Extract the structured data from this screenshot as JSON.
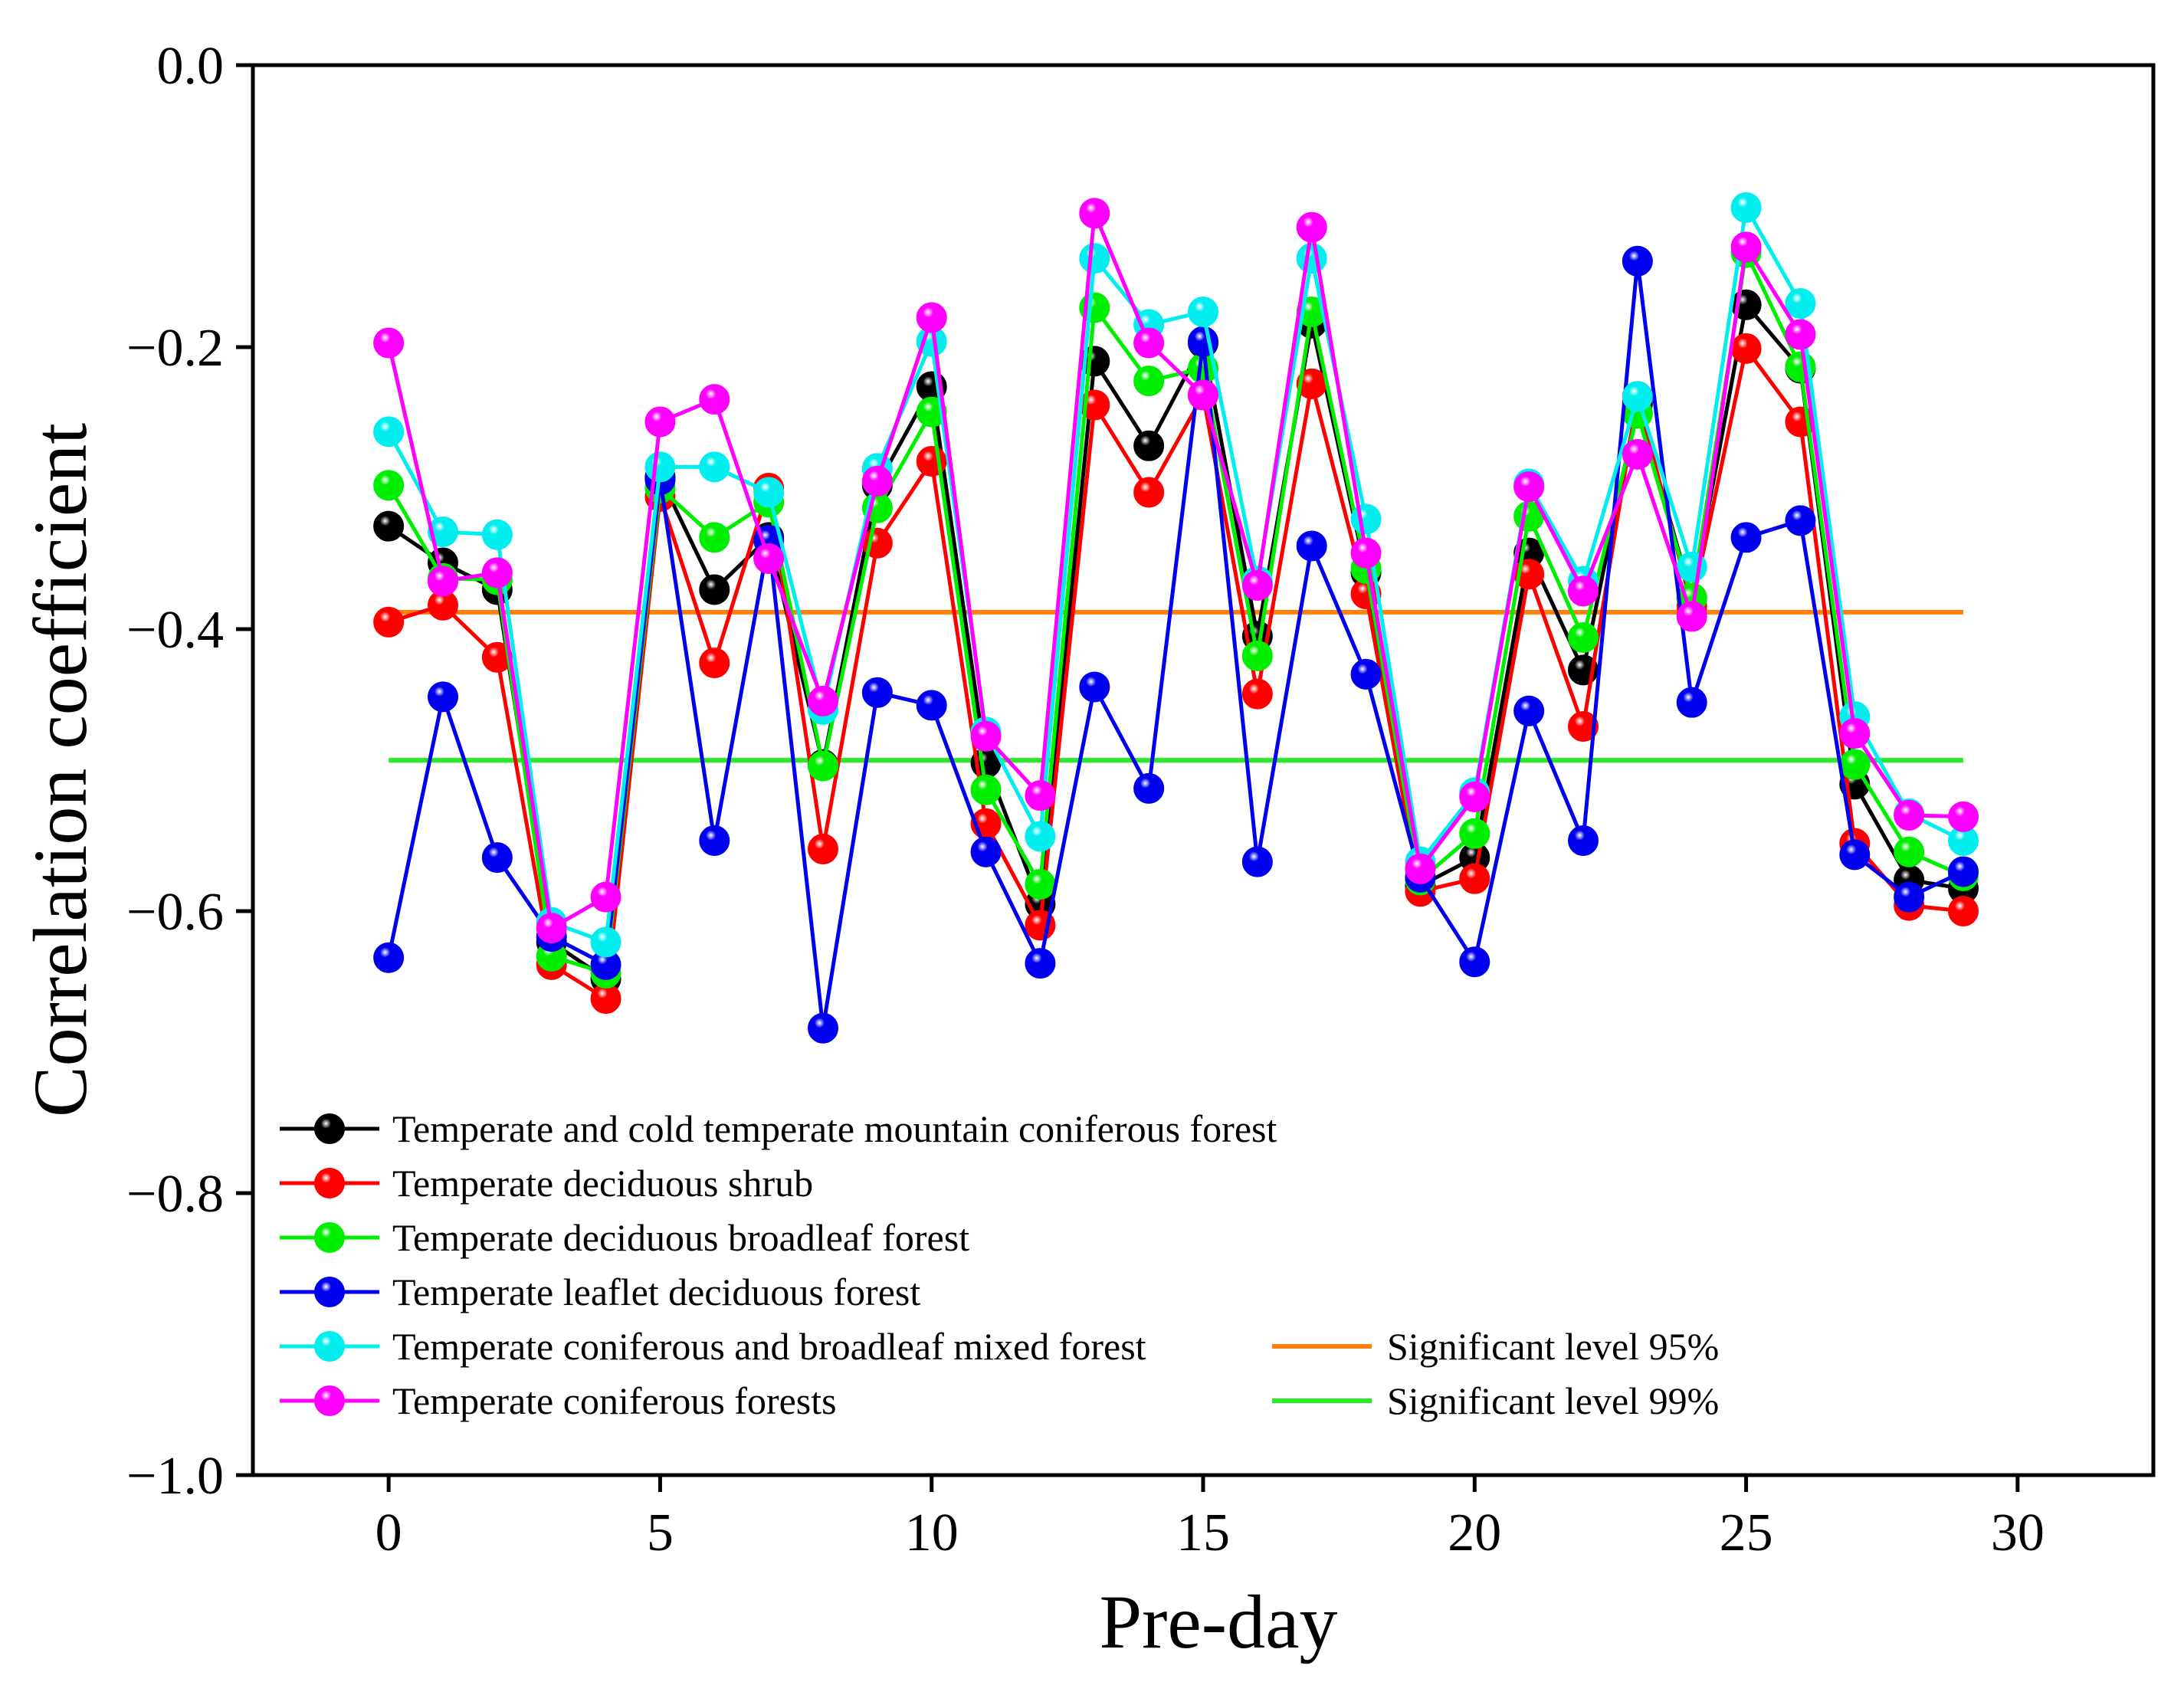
{
  "chart_data": {
    "type": "line",
    "xlabel": "Pre-day",
    "ylabel": "Correlation coefficient",
    "xlim": [
      -2.5,
      32.5
    ],
    "ylim": [
      -1.0,
      0.0
    ],
    "x_ticks": [
      0,
      5,
      10,
      15,
      20,
      25,
      30
    ],
    "x_tick_labels": [
      "0",
      "5",
      "10",
      "15",
      "20",
      "25",
      "30"
    ],
    "y_ticks": [
      0.0,
      -0.2,
      -0.4,
      -0.6,
      -0.8,
      -1.0
    ],
    "y_tick_labels": [
      "0.0",
      "−0.2",
      "−0.4",
      "−0.6",
      "−0.8",
      "−1.0"
    ],
    "x": [
      0,
      1,
      2,
      3,
      4,
      5,
      6,
      7,
      8,
      9,
      10,
      11,
      12,
      13,
      14,
      15,
      16,
      17,
      18,
      19,
      20,
      21,
      22,
      23,
      24,
      25,
      26,
      27,
      28,
      29
    ],
    "series": [
      {
        "name": "Temperate and cold temperate mountain coniferous forest",
        "color": "#000000",
        "values": [
          -0.327,
          -0.353,
          -0.372,
          -0.622,
          -0.648,
          -0.292,
          -0.372,
          -0.335,
          -0.496,
          -0.298,
          -0.228,
          -0.495,
          -0.595,
          -0.21,
          -0.27,
          -0.197,
          -0.405,
          -0.183,
          -0.36,
          -0.582,
          -0.562,
          -0.346,
          -0.429,
          -0.24,
          -0.378,
          -0.17,
          -0.215,
          -0.51,
          -0.578,
          -0.584
        ]
      },
      {
        "name": "Temperate deciduous shrub",
        "color": "#ff0000",
        "values": [
          -0.395,
          -0.383,
          -0.42,
          -0.638,
          -0.662,
          -0.306,
          -0.424,
          -0.3,
          -0.556,
          -0.339,
          -0.281,
          -0.538,
          -0.61,
          -0.241,
          -0.303,
          -0.234,
          -0.446,
          -0.226,
          -0.375,
          -0.586,
          -0.577,
          -0.361,
          -0.469,
          -0.235,
          -0.384,
          -0.201,
          -0.253,
          -0.552,
          -0.596,
          -0.6
        ]
      },
      {
        "name": "Temperate deciduous broadleaf forest",
        "color": "#00ee00",
        "values": [
          -0.298,
          -0.364,
          -0.365,
          -0.632,
          -0.644,
          -0.3,
          -0.335,
          -0.31,
          -0.497,
          -0.314,
          -0.246,
          -0.514,
          -0.581,
          -0.172,
          -0.224,
          -0.215,
          -0.419,
          -0.175,
          -0.357,
          -0.578,
          -0.545,
          -0.32,
          -0.406,
          -0.247,
          -0.378,
          -0.133,
          -0.214,
          -0.496,
          -0.558,
          -0.575
        ]
      },
      {
        "name": "Temperate leaflet deciduous forest",
        "color": "#0000ee",
        "values": [
          -0.633,
          -0.448,
          -0.562,
          -0.618,
          -0.638,
          -0.294,
          -0.55,
          -0.337,
          -0.683,
          -0.445,
          -0.454,
          -0.558,
          -0.637,
          -0.441,
          -0.513,
          -0.196,
          -0.565,
          -0.341,
          -0.432,
          -0.576,
          -0.636,
          -0.458,
          -0.55,
          -0.139,
          -0.452,
          -0.335,
          -0.323,
          -0.56,
          -0.59,
          -0.572
        ]
      },
      {
        "name": "Temperate coniferous and broadleaf mixed forest",
        "color": "#00eeee",
        "values": [
          -0.26,
          -0.331,
          -0.333,
          -0.608,
          -0.622,
          -0.285,
          -0.285,
          -0.303,
          -0.457,
          -0.286,
          -0.196,
          -0.473,
          -0.547,
          -0.137,
          -0.184,
          -0.175,
          -0.366,
          -0.137,
          -0.322,
          -0.565,
          -0.516,
          -0.297,
          -0.366,
          -0.235,
          -0.356,
          -0.101,
          -0.169,
          -0.462,
          -0.531,
          -0.55
        ]
      },
      {
        "name": "Temperate coniferous forests",
        "color": "#ff00ff",
        "values": [
          -0.197,
          -0.366,
          -0.36,
          -0.612,
          -0.59,
          -0.253,
          -0.237,
          -0.35,
          -0.451,
          -0.295,
          -0.179,
          -0.476,
          -0.518,
          -0.105,
          -0.197,
          -0.234,
          -0.369,
          -0.115,
          -0.346,
          -0.57,
          -0.519,
          -0.299,
          -0.373,
          -0.276,
          -0.391,
          -0.129,
          -0.191,
          -0.474,
          -0.532,
          -0.533
        ]
      }
    ],
    "reference_lines": [
      {
        "name": "Significant level 95%",
        "color": "#ff7f0e",
        "y": -0.388,
        "x_range": [
          0,
          29
        ]
      },
      {
        "name": "Significant level 99%",
        "color": "#22ee22",
        "y": -0.493,
        "x_range": [
          0,
          29
        ]
      }
    ],
    "legend_position": "bottom-left",
    "grid": false
  }
}
